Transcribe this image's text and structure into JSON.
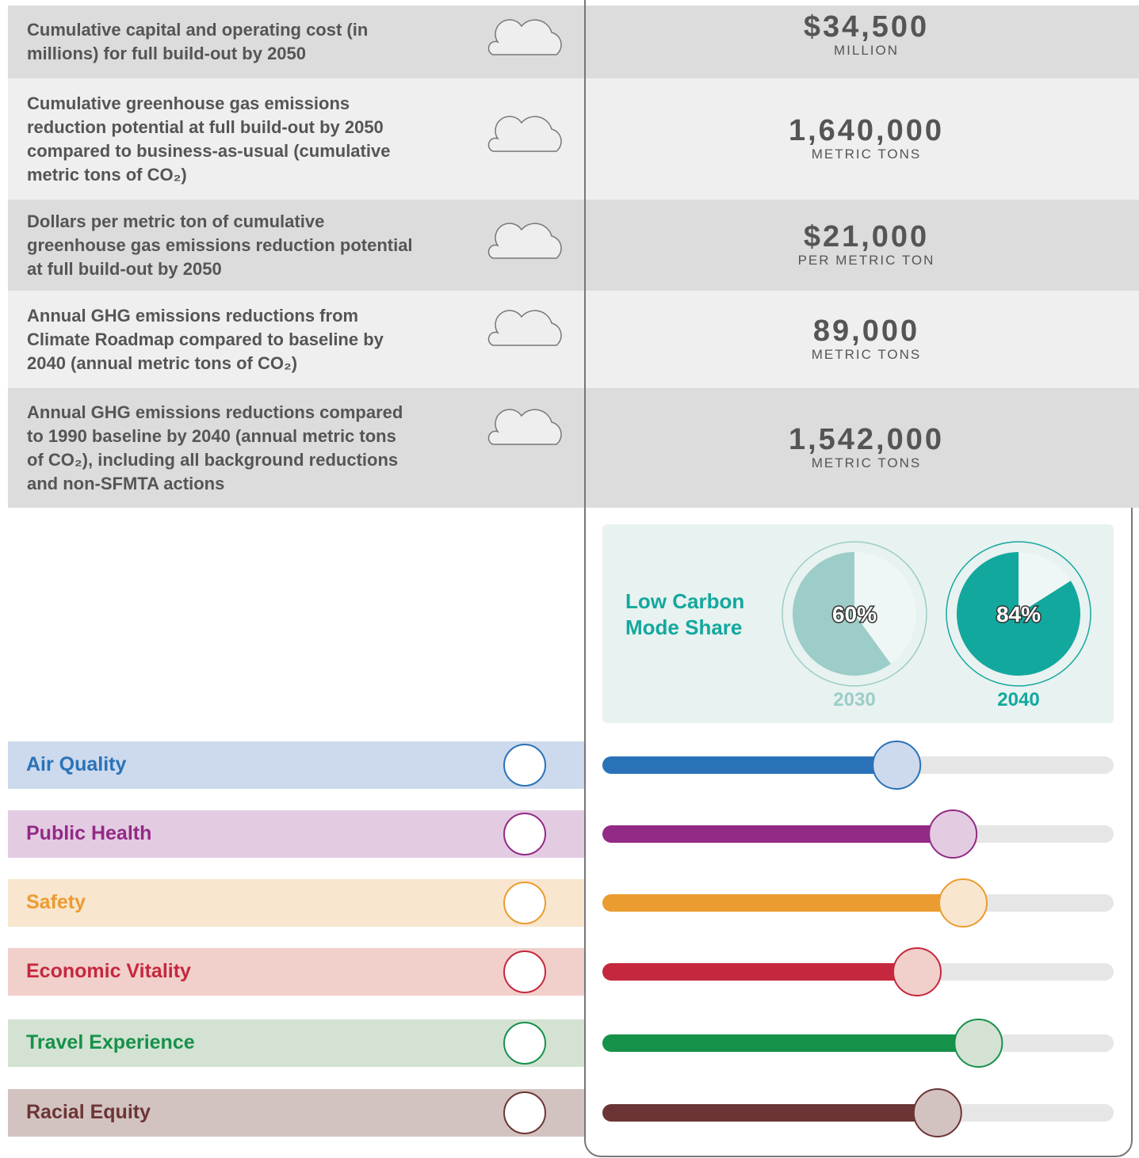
{
  "metrics": [
    {
      "label": [
        "Cumulative capital and operating cost (in",
        "millions) for full build-out by 2050"
      ],
      "value": "$34,500",
      "unit": "MILLION"
    },
    {
      "label": [
        "Cumulative greenhouse gas emissions",
        "reduction potential at full build-out by 2050",
        "compared to business-as-usual (cumulative",
        "metric tons of CO₂)"
      ],
      "value": "1,640,000",
      "unit": "METRIC TONS"
    },
    {
      "label": [
        "Dollars per metric ton of cumulative",
        "greenhouse gas emissions reduction potential",
        "at full build-out by 2050"
      ],
      "value": "$21,000",
      "unit": "PER METRIC TON"
    },
    {
      "label": [
        "Annual GHG emissions reductions from",
        "Climate Roadmap compared to baseline by",
        "2040 (annual metric tons of CO₂)"
      ],
      "value": "89,000",
      "unit": "METRIC TONS"
    },
    {
      "label": [
        "Annual GHG emissions reductions compared",
        "to 1990 baseline by 2040 (annual metric tons",
        "of CO₂), including all background reductions",
        "and non-SFMTA actions"
      ],
      "value": "1,542,000",
      "unit": "METRIC TONS"
    }
  ],
  "mode_share": {
    "title": [
      "Low Carbon",
      "Mode Share"
    ],
    "type": "pie",
    "items": [
      {
        "year": "2030",
        "value": 60,
        "value_label": "60%",
        "color": "#9ccdc8"
      },
      {
        "year": "2040",
        "value": 84,
        "value_label": "84%",
        "color": "#13a89e"
      }
    ]
  },
  "impacts": {
    "type": "bar",
    "xlim": [
      0,
      100
    ],
    "items": [
      {
        "name": "Air Quality",
        "value": 56,
        "color": "#2a72b8",
        "background": "#cdd9ec"
      },
      {
        "name": "Public Health",
        "value": 67,
        "color": "#932a85",
        "background": "#e3cce2"
      },
      {
        "name": "Safety",
        "value": 69,
        "color": "#eb9c30",
        "background": "#f9e6cf"
      },
      {
        "name": "Economic Vitality",
        "value": 60,
        "color": "#c5283e",
        "background": "#f1cfca"
      },
      {
        "name": "Travel Experience",
        "value": 72,
        "color": "#16914a",
        "background": "#d3e2d3"
      },
      {
        "name": "Racial Equity",
        "value": 64,
        "color": "#6b3535",
        "background": "#d3c3c0"
      }
    ]
  }
}
